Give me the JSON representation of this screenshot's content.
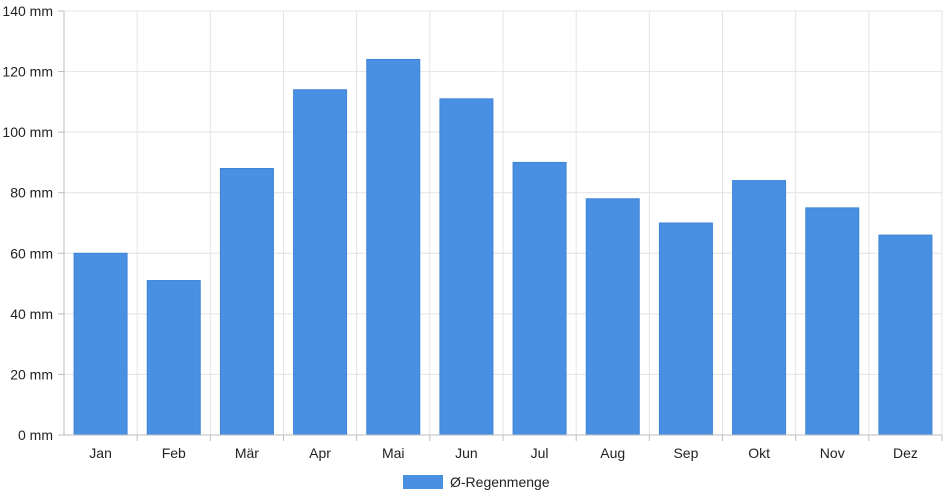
{
  "chart_data": {
    "type": "bar",
    "categories": [
      "Jan",
      "Feb",
      "Mär",
      "Apr",
      "Mai",
      "Jun",
      "Jul",
      "Aug",
      "Sep",
      "Okt",
      "Nov",
      "Dez"
    ],
    "series": [
      {
        "name": "Ø-Regenmenge",
        "values": [
          60,
          51,
          88,
          114,
          124,
          111,
          90,
          78,
          70,
          84,
          75,
          66
        ],
        "color": "#4a90e2"
      }
    ],
    "y_unit": "mm",
    "ylim": [
      0,
      140
    ],
    "y_ticks": [
      0,
      20,
      40,
      60,
      80,
      100,
      120,
      140
    ],
    "grid": true,
    "legend_position": "bottom"
  }
}
